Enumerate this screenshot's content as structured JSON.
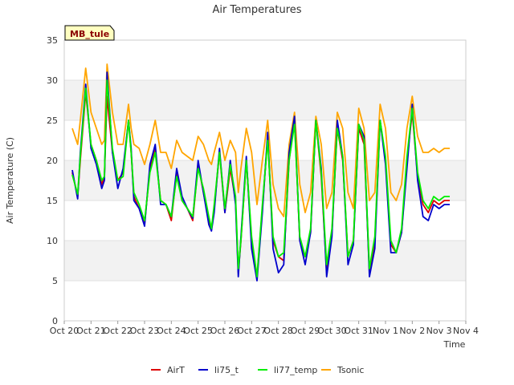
{
  "chart_data": {
    "type": "line",
    "title": "Air Temperatures",
    "xlabel": "Time",
    "ylabel": "Air Temperature (C)",
    "badge": "MB_tule",
    "ylim": [
      0,
      35
    ],
    "yticks": [
      0,
      5,
      10,
      15,
      20,
      25,
      30,
      35
    ],
    "xlim": [
      0,
      15
    ],
    "xticks": [
      {
        "x": 0,
        "label": "Oct 20"
      },
      {
        "x": 1,
        "label": "Oct 21"
      },
      {
        "x": 2,
        "label": "Oct 22"
      },
      {
        "x": 3,
        "label": "Oct 23"
      },
      {
        "x": 4,
        "label": "Oct 24"
      },
      {
        "x": 5,
        "label": "Oct 25"
      },
      {
        "x": 6,
        "label": "Oct 26"
      },
      {
        "x": 7,
        "label": "Oct 27"
      },
      {
        "x": 8,
        "label": "Oct 28"
      },
      {
        "x": 9,
        "label": "Oct 29"
      },
      {
        "x": 10,
        "label": "Oct 30"
      },
      {
        "x": 11,
        "label": "Oct 31"
      },
      {
        "x": 12,
        "label": "Nov 1"
      },
      {
        "x": 13,
        "label": "Nov 2"
      },
      {
        "x": 14,
        "label": "Nov 3"
      },
      {
        "x": 15,
        "label": "Nov 4"
      }
    ],
    "x_units": "days since Oct 20",
    "grid": "horizontal bands",
    "legend_position": "bottom",
    "series": [
      {
        "name": "AirT",
        "color": "#dd0000",
        "x": [
          0.3,
          0.5,
          0.6,
          0.8,
          1.0,
          1.2,
          1.4,
          1.5,
          1.6,
          1.8,
          2.0,
          2.2,
          2.4,
          2.5,
          2.6,
          2.8,
          3.0,
          3.2,
          3.4,
          3.6,
          3.8,
          4.0,
          4.2,
          4.4,
          4.6,
          4.8,
          5.0,
          5.2,
          5.4,
          5.5,
          5.6,
          5.8,
          6.0,
          6.2,
          6.4,
          6.5,
          6.6,
          6.8,
          7.0,
          7.2,
          7.4,
          7.6,
          7.8,
          8.0,
          8.2,
          8.4,
          8.6,
          8.8,
          9.0,
          9.2,
          9.4,
          9.6,
          9.8,
          10.0,
          10.2,
          10.4,
          10.6,
          10.8,
          11.0,
          11.2,
          11.4,
          11.6,
          11.8,
          12.0,
          12.2,
          12.4,
          12.6,
          12.8,
          13.0,
          13.2,
          13.4,
          13.6,
          13.8,
          14.0,
          14.2,
          14.4
        ],
        "y": [
          18.5,
          15.5,
          20,
          28.5,
          22,
          20,
          17,
          18,
          28,
          21,
          17.5,
          18.5,
          25,
          21,
          15.5,
          14,
          12,
          19,
          21.5,
          15,
          14.5,
          12.5,
          18.5,
          15,
          14,
          12.5,
          19.5,
          16,
          12.5,
          11.5,
          14,
          21,
          13.5,
          19,
          15,
          6,
          10,
          20,
          10,
          5.5,
          14,
          23,
          10,
          8,
          7.5,
          20,
          25,
          10,
          8,
          11,
          25,
          18,
          6,
          11,
          24,
          20,
          8,
          10,
          24,
          22,
          6,
          10,
          25,
          20,
          9.5,
          8.5,
          11,
          20,
          26,
          18,
          14.5,
          13.5,
          15,
          14.5,
          15,
          15
        ]
      },
      {
        "name": "li75_t",
        "color": "#0000cc",
        "x": [
          0.3,
          0.5,
          0.6,
          0.8,
          1.0,
          1.2,
          1.4,
          1.5,
          1.6,
          1.8,
          2.0,
          2.2,
          2.4,
          2.5,
          2.6,
          2.8,
          3.0,
          3.2,
          3.4,
          3.6,
          3.8,
          4.0,
          4.2,
          4.4,
          4.6,
          4.8,
          5.0,
          5.2,
          5.4,
          5.5,
          5.6,
          5.8,
          6.0,
          6.2,
          6.4,
          6.5,
          6.6,
          6.8,
          7.0,
          7.2,
          7.4,
          7.6,
          7.8,
          8.0,
          8.2,
          8.4,
          8.6,
          8.8,
          9.0,
          9.2,
          9.4,
          9.6,
          9.8,
          10.0,
          10.2,
          10.4,
          10.6,
          10.8,
          11.0,
          11.2,
          11.4,
          11.6,
          11.8,
          12.0,
          12.2,
          12.4,
          12.6,
          12.8,
          13.0,
          13.2,
          13.4,
          13.6,
          13.8,
          14.0,
          14.2,
          14.4
        ],
        "y": [
          18.8,
          15.2,
          21,
          29.5,
          21.5,
          19.5,
          16.5,
          17.5,
          31,
          21,
          16.5,
          19,
          25,
          21.5,
          15,
          14,
          11.8,
          19.5,
          22,
          14.5,
          14.5,
          13,
          19,
          15.5,
          14,
          12.8,
          20,
          16,
          12,
          11.2,
          13.5,
          21.5,
          13.5,
          20,
          14.5,
          5.5,
          10.5,
          20.5,
          9,
          5,
          13.5,
          23.5,
          9,
          6,
          7,
          21,
          25.5,
          10,
          7,
          11,
          25,
          19,
          5.5,
          10.5,
          25,
          20.5,
          7,
          9.5,
          24.5,
          23,
          5.5,
          9,
          25,
          19.5,
          8.5,
          8.5,
          11,
          19,
          27,
          17.5,
          13,
          12.5,
          14.5,
          14,
          14.5,
          14.5
        ]
      },
      {
        "name": "li77_temp",
        "color": "#00ee00",
        "x": [
          0.3,
          0.5,
          0.6,
          0.8,
          1.0,
          1.2,
          1.4,
          1.5,
          1.6,
          1.8,
          2.0,
          2.2,
          2.4,
          2.5,
          2.6,
          2.8,
          3.0,
          3.2,
          3.4,
          3.6,
          3.8,
          4.0,
          4.2,
          4.4,
          4.6,
          4.8,
          5.0,
          5.2,
          5.4,
          5.5,
          5.6,
          5.8,
          6.0,
          6.2,
          6.4,
          6.5,
          6.6,
          6.8,
          7.0,
          7.2,
          7.4,
          7.6,
          7.8,
          8.0,
          8.2,
          8.4,
          8.6,
          8.8,
          9.0,
          9.2,
          9.4,
          9.6,
          9.8,
          10.0,
          10.2,
          10.4,
          10.6,
          10.8,
          11.0,
          11.2,
          11.4,
          11.6,
          11.8,
          12.0,
          12.2,
          12.4,
          12.6,
          12.8,
          13.0,
          13.2,
          13.4,
          13.6,
          13.8,
          14.0,
          14.2,
          14.4
        ],
        "y": [
          18.2,
          15.8,
          20.5,
          29,
          22,
          20,
          17.5,
          18,
          30,
          21.5,
          17.5,
          18,
          25,
          21,
          16,
          14.5,
          12.5,
          18.5,
          21,
          15,
          14.5,
          13,
          18,
          15,
          14,
          13,
          19,
          16.5,
          13,
          11.5,
          14.5,
          21,
          14,
          19.5,
          15.5,
          6.5,
          10,
          20,
          10.5,
          5.5,
          14.5,
          22.5,
          10.5,
          8,
          8.5,
          20,
          24.5,
          10.5,
          8,
          11.5,
          25,
          18.5,
          7,
          11.5,
          24,
          20.5,
          8,
          10,
          24.5,
          22.5,
          6.5,
          10.5,
          25,
          20.5,
          10,
          8.5,
          11.5,
          20.5,
          26.5,
          18.5,
          15,
          14,
          15.5,
          15,
          15.5,
          15.5
        ]
      },
      {
        "name": "Tsonic",
        "color": "#ffa500",
        "x": [
          0.3,
          0.5,
          0.6,
          0.8,
          1.0,
          1.2,
          1.4,
          1.5,
          1.6,
          1.8,
          2.0,
          2.2,
          2.4,
          2.5,
          2.6,
          2.8,
          3.0,
          3.2,
          3.4,
          3.6,
          3.8,
          4.0,
          4.2,
          4.4,
          4.6,
          4.8,
          5.0,
          5.2,
          5.4,
          5.5,
          5.6,
          5.8,
          6.0,
          6.2,
          6.4,
          6.5,
          6.6,
          6.8,
          7.0,
          7.2,
          7.4,
          7.6,
          7.8,
          8.0,
          8.2,
          8.4,
          8.6,
          8.8,
          9.0,
          9.2,
          9.4,
          9.6,
          9.8,
          10.0,
          10.2,
          10.4,
          10.6,
          10.8,
          11.0,
          11.2,
          11.4,
          11.6,
          11.8,
          12.0,
          12.2,
          12.4,
          12.6,
          12.8,
          13.0,
          13.2,
          13.4,
          13.6,
          13.8,
          14.0,
          14.2,
          14.4
        ],
        "y": [
          24,
          22,
          25,
          31.5,
          26,
          24,
          22,
          22.5,
          32,
          26,
          22,
          22,
          27,
          24,
          22,
          21.5,
          19.5,
          22,
          25,
          21,
          21,
          19,
          22.5,
          21,
          20.5,
          20,
          23,
          22,
          20,
          19.5,
          21,
          23.5,
          20,
          22.5,
          21,
          16,
          19,
          24,
          21,
          14.5,
          20,
          25,
          17,
          14,
          13,
          22,
          26,
          17,
          13.5,
          16,
          25.5,
          22,
          14,
          16,
          26,
          24,
          16,
          14,
          26.5,
          24,
          15,
          16,
          27,
          24,
          16,
          15,
          17,
          24,
          28,
          23,
          21,
          21,
          21.5,
          21,
          21.5,
          21.5
        ]
      }
    ]
  }
}
